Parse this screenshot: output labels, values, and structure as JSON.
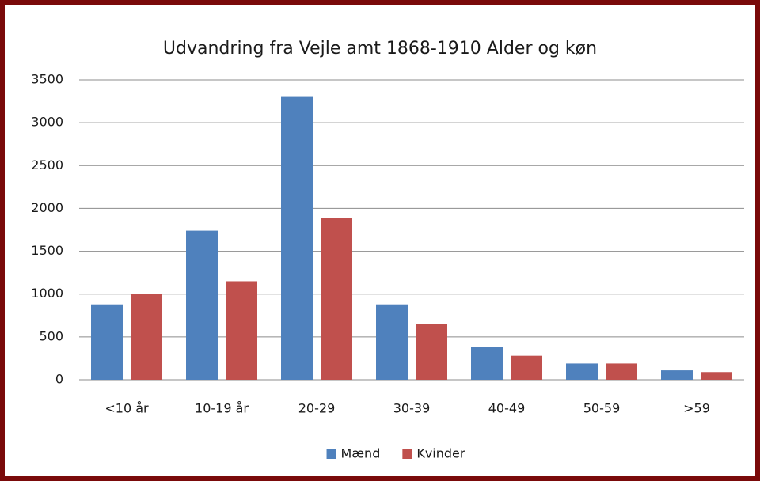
{
  "chart_data": {
    "type": "bar",
    "title": "Udvandring fra Vejle amt 1868-1910 Alder og køn",
    "categories": [
      "<10 år",
      "10-19 år",
      "20-29",
      "30-39",
      "40-49",
      "50-59",
      ">59"
    ],
    "series": [
      {
        "name": "Mænd",
        "color": "#4f81bd",
        "values": [
          880,
          1740,
          3310,
          880,
          380,
          190,
          110
        ]
      },
      {
        "name": "Kvinder",
        "color": "#c0504d",
        "values": [
          1000,
          1150,
          1890,
          650,
          280,
          190,
          90
        ]
      }
    ],
    "ylim": [
      0,
      3500
    ],
    "yticks": [
      0,
      500,
      1000,
      1500,
      2000,
      2500,
      3000,
      3500
    ],
    "grid": true,
    "legend": "bottom"
  }
}
